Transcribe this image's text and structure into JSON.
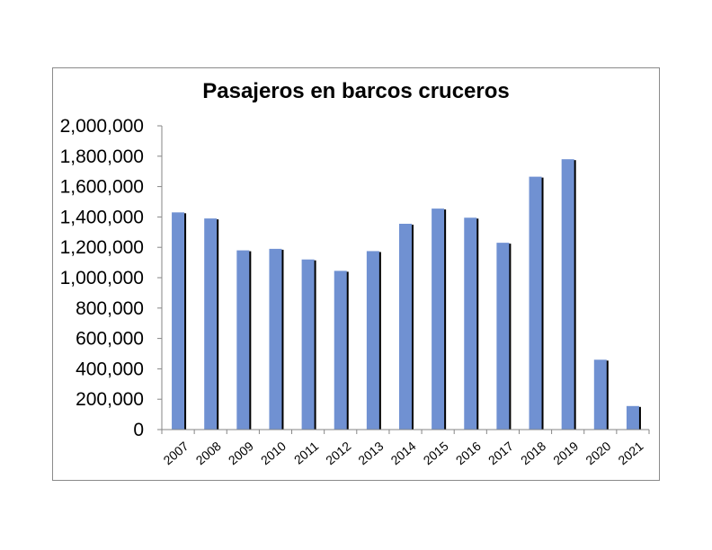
{
  "chart_data": {
    "type": "bar",
    "title": "Pasajeros en barcos cruceros",
    "xlabel": "",
    "ylabel": "",
    "categories": [
      "2007",
      "2008",
      "2009",
      "2010",
      "2011",
      "2012",
      "2013",
      "2014",
      "2015",
      "2016",
      "2017",
      "2018",
      "2019",
      "2020",
      "2021"
    ],
    "values": [
      1430000,
      1390000,
      1180000,
      1190000,
      1120000,
      1045000,
      1175000,
      1355000,
      1455000,
      1395000,
      1230000,
      1665000,
      1780000,
      460000,
      155000
    ],
    "ylim": [
      0,
      2000000
    ],
    "yticks": [
      0,
      200000,
      400000,
      600000,
      800000,
      1000000,
      1200000,
      1400000,
      1600000,
      1800000,
      2000000
    ],
    "ytick_labels": [
      "0",
      "200,000",
      "400,000",
      "600,000",
      "800,000",
      "1,000,000",
      "1,200,000",
      "1,400,000",
      "1,600,000",
      "1,800,000",
      "2,000,000"
    ],
    "grid": false,
    "legend": "none",
    "colors": {
      "bar": "#7091d2",
      "bar_shadow": "#000000",
      "axis": "#868686",
      "frame": "#8a8a8a"
    }
  }
}
